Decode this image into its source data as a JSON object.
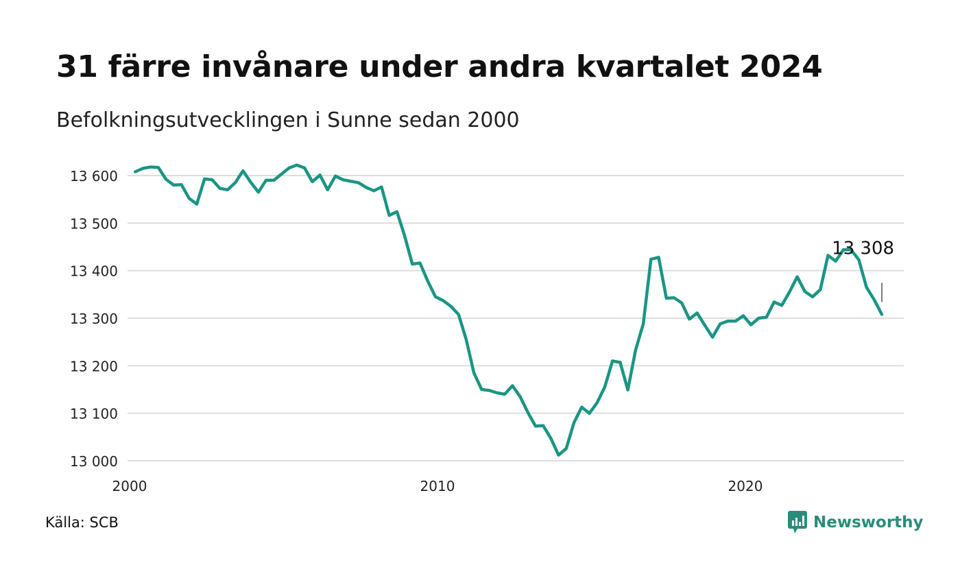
{
  "header": {
    "title": "31 färre invånare under andra kvartalet 2024",
    "subtitle": "Befolkningsutvecklingen i Sunne sedan 2000"
  },
  "footer": {
    "source": "Källa: SCB",
    "logo_text": "Newsworthy",
    "logo_icon": "newsworthy-chart-icon"
  },
  "colors": {
    "line": "#1a9584",
    "grid": "#dddddd",
    "logo": "#2a8c7b"
  },
  "chart_data": {
    "type": "line",
    "xlim": [
      2000,
      2025.3
    ],
    "ylim": [
      13000,
      13620
    ],
    "grid": true,
    "yticks": [
      13000,
      13100,
      13200,
      13300,
      13400,
      13500,
      13600
    ],
    "ytick_labels": [
      "13 000",
      "13 100",
      "13 200",
      "13 300",
      "13 400",
      "13 500",
      "13 600"
    ],
    "xticks": [
      2000,
      2010,
      2020
    ],
    "xtick_labels": [
      "2000",
      "2010",
      "2020"
    ],
    "end_label": "13 308",
    "series": [
      {
        "x": [
          2000.25,
          2000.5,
          2000.75,
          2001.0,
          2001.25,
          2001.5,
          2001.75,
          2002.0,
          2002.25,
          2002.5,
          2002.75,
          2003.0,
          2003.25,
          2003.5,
          2003.75,
          2004.0,
          2004.25,
          2004.5,
          2004.75,
          2005.0,
          2005.25,
          2005.5,
          2005.75,
          2006.0,
          2006.25,
          2006.5,
          2006.75,
          2007.0,
          2007.25,
          2007.5,
          2007.75,
          2008.0,
          2008.25,
          2008.5,
          2008.75,
          2009.0,
          2009.25,
          2009.5,
          2009.75,
          2010.0,
          2010.25,
          2010.5,
          2010.75,
          2011.0,
          2011.25,
          2011.5,
          2011.75,
          2012.0,
          2012.25,
          2012.5,
          2012.75,
          2013.0,
          2013.25,
          2013.5,
          2013.75,
          2014.0,
          2014.25,
          2014.5,
          2014.75,
          2015.0,
          2015.25,
          2015.5,
          2015.75,
          2016.0,
          2016.25,
          2016.5,
          2016.75,
          2017.0,
          2017.25,
          2017.5,
          2017.75,
          2018.0,
          2018.25,
          2018.5,
          2018.75,
          2019.0,
          2019.25,
          2019.5,
          2019.75,
          2020.0,
          2020.25,
          2020.5,
          2020.75,
          2021.0,
          2021.25,
          2021.5,
          2021.75,
          2022.0,
          2022.25,
          2022.5,
          2022.75,
          2023.0,
          2023.25,
          2023.5,
          2023.75,
          2024.0,
          2024.25,
          2024.5
        ],
        "y": [
          13608,
          13615,
          13618,
          13617,
          13592,
          13580,
          13581,
          13552,
          13540,
          13593,
          13591,
          13573,
          13570,
          13585,
          13610,
          13586,
          13565,
          13590,
          13590,
          13603,
          13616,
          13622,
          13616,
          13587,
          13601,
          13570,
          13599,
          13591,
          13588,
          13585,
          13575,
          13568,
          13576,
          13516,
          13524,
          13473,
          13414,
          13416,
          13378,
          13345,
          13337,
          13325,
          13308,
          13255,
          13185,
          13150,
          13148,
          13143,
          13140,
          13158,
          13135,
          13102,
          13073,
          13074,
          13047,
          13012,
          13026,
          13080,
          13113,
          13100,
          13122,
          13155,
          13210,
          13207,
          13149,
          13233,
          13288,
          13424,
          13428,
          13342,
          13343,
          13332,
          13298,
          13311,
          13285,
          13260,
          13288,
          13294,
          13294,
          13305,
          13286,
          13300,
          13302,
          13334,
          13327,
          13355,
          13387,
          13356,
          13345,
          13360,
          13432,
          13420,
          13444,
          13444,
          13423,
          13365,
          13339,
          13308
        ]
      }
    ]
  }
}
